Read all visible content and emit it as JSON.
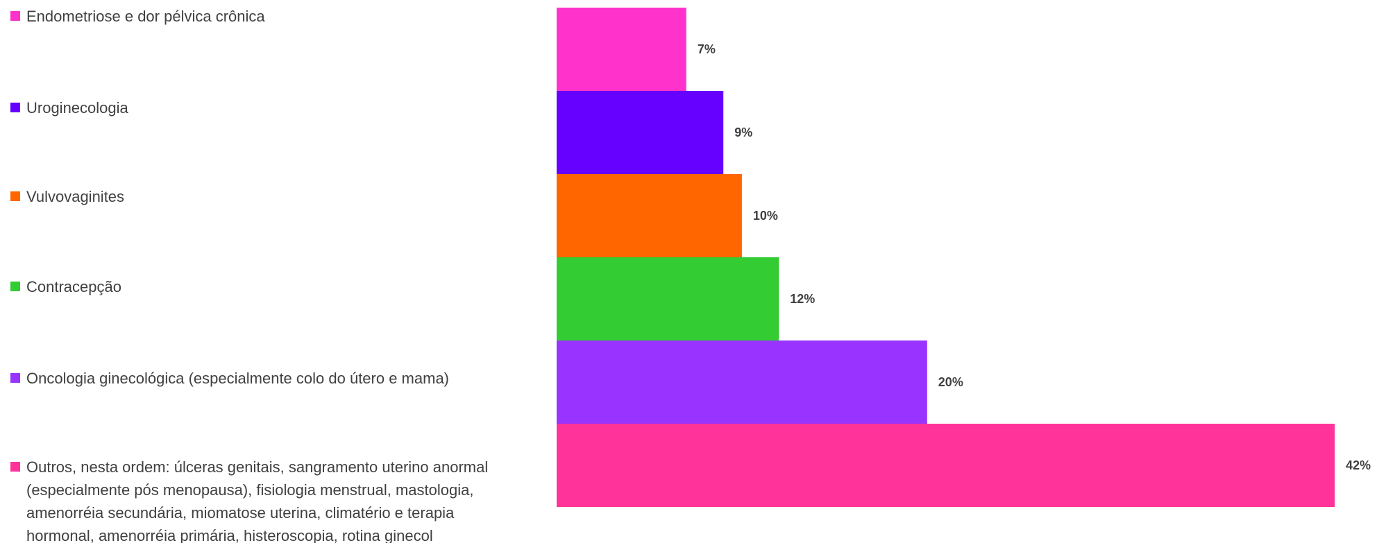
{
  "chart_data": {
    "type": "bar",
    "orientation": "horizontal",
    "categories": [
      "Endometriose e dor pélvica crônica",
      "Uroginecologia",
      "Vulvovaginites",
      "Contracepção",
      "Oncologia ginecológica (especialmente colo do útero e mama)",
      "Outros, nesta ordem: úlceras genitais, sangramento uterino anormal (especialmente pós menopausa), fisiologia menstrual, mastologia, amenorréia secundária, miomatose uterina, climatério e terapia hormonal, amenorréia primária, histeroscopia, rotina ginecol"
    ],
    "legend_lines": [
      [
        "Endometriose e dor pélvica crônica"
      ],
      [
        "Uroginecologia"
      ],
      [
        "Vulvovaginites"
      ],
      [
        "Contracepção"
      ],
      [
        "Oncologia ginecológica (especialmente colo do útero e mama)"
      ],
      [
        "Outros, nesta ordem: úlceras genitais, sangramento uterino anormal",
        "(especialmente pós menopausa), fisiologia menstrual, mastologia,",
        "amenorréia secundária, miomatose uterina, climatério e terapia",
        "hormonal, amenorréia primária, histeroscopia, rotina ginecol"
      ]
    ],
    "values": [
      7,
      9,
      10,
      12,
      20,
      42
    ],
    "value_labels": [
      "7%",
      "9%",
      "10%",
      "12%",
      "20%",
      "42%"
    ],
    "unit": "%",
    "colors": [
      "#FF33CC",
      "#6600FF",
      "#FF6600",
      "#33CC33",
      "#9933FF",
      "#FF3399"
    ],
    "legend_placement": "left",
    "grid": false,
    "xlim": [
      0,
      42
    ],
    "title": "",
    "xlabel": "",
    "ylabel": ""
  }
}
